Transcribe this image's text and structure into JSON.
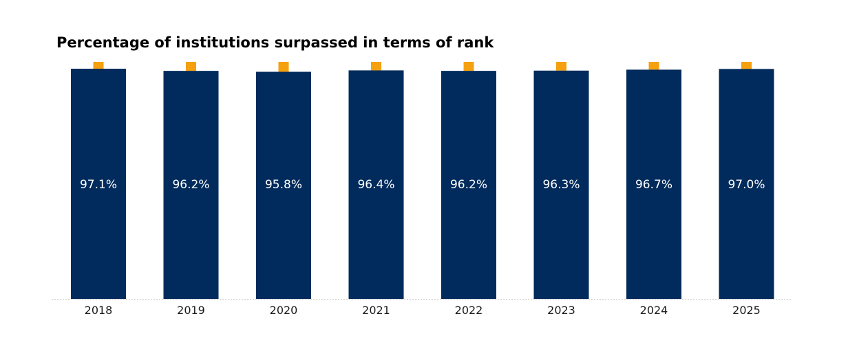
{
  "chart_data": {
    "type": "bar",
    "title": "Percentage of institutions surpassed in terms of rank",
    "categories": [
      "2018",
      "2019",
      "2020",
      "2021",
      "2022",
      "2023",
      "2024",
      "2025"
    ],
    "values": [
      97.1,
      96.2,
      95.8,
      96.4,
      96.2,
      96.3,
      96.7,
      97.0
    ],
    "value_labels": [
      "97.1%",
      "96.2%",
      "95.8%",
      "96.4%",
      "96.2%",
      "96.3%",
      "96.7%",
      "97.0%"
    ],
    "remainder_marker": 100,
    "ylim": [
      0,
      100
    ],
    "xlabel": "",
    "ylabel": "",
    "grid": false,
    "colors": {
      "bar": "#002b5c",
      "top_marker": "#f5a00f",
      "baseline": "#c8c8c8"
    }
  }
}
